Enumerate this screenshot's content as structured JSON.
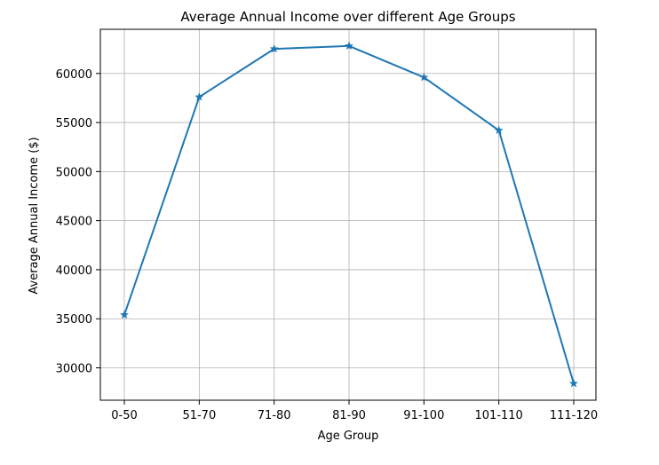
{
  "chart_data": {
    "type": "line",
    "title": "Average Annual Income over different Age Groups",
    "xlabel": "Age Group",
    "ylabel": "Average Annual Income ($)",
    "categories": [
      "0-50",
      "51-70",
      "71-80",
      "81-90",
      "91-100",
      "101-110",
      "111-120"
    ],
    "series": [
      {
        "values": [
          35400,
          57600,
          62500,
          62800,
          59600,
          54200,
          28400
        ],
        "color": "#1f77b4",
        "marker": "star"
      }
    ],
    "ylim": [
      26700,
      64500
    ],
    "yticks": [
      30000,
      35000,
      40000,
      45000,
      50000,
      55000,
      60000
    ],
    "grid": true,
    "legend": "none"
  }
}
